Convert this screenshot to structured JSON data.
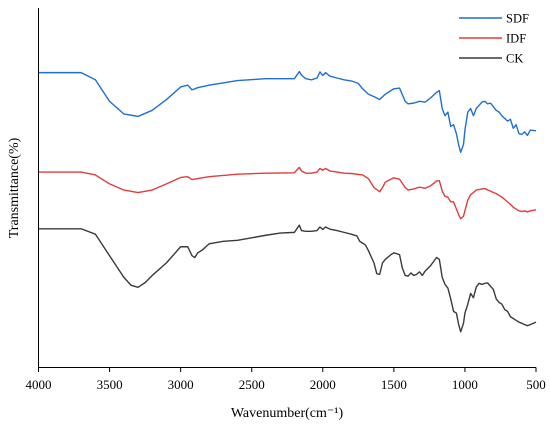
{
  "chart_data": {
    "type": "line",
    "title": "",
    "xlabel": "Wavenumber(cm⁻¹)",
    "ylabel": "Transmittance(%)",
    "xlim": [
      4000,
      500
    ],
    "x_reversed": true,
    "y_ticks_shown": false,
    "grid": false,
    "legend_position": "top-right",
    "x_ticks": [
      4000,
      3500,
      3000,
      2500,
      2000,
      1500,
      1000,
      500
    ],
    "x_tick_labels": [
      "4000",
      "3500",
      "3000",
      "2500",
      "2000",
      "1500",
      "1000",
      "500"
    ],
    "ylim": [
      0,
      100
    ],
    "series": [
      {
        "name": "SDF",
        "color": "#1f6fd1",
        "points": [
          [
            4000,
            82
          ],
          [
            3800,
            82
          ],
          [
            3700,
            82
          ],
          [
            3600,
            80
          ],
          [
            3500,
            74
          ],
          [
            3400,
            70.5
          ],
          [
            3300,
            69.8
          ],
          [
            3200,
            71.5
          ],
          [
            3100,
            74.5
          ],
          [
            3000,
            78
          ],
          [
            2950,
            78.5
          ],
          [
            2920,
            77.2
          ],
          [
            2880,
            77.8
          ],
          [
            2800,
            78.5
          ],
          [
            2600,
            79.8
          ],
          [
            2400,
            80.3
          ],
          [
            2300,
            80.3
          ],
          [
            2200,
            80.3
          ],
          [
            2165,
            82.3
          ],
          [
            2150,
            81.3
          ],
          [
            2120,
            80.3
          ],
          [
            2080,
            80
          ],
          [
            2040,
            80.5
          ],
          [
            2020,
            82.2
          ],
          [
            2000,
            81.2
          ],
          [
            1980,
            82
          ],
          [
            1950,
            81
          ],
          [
            1900,
            80.5
          ],
          [
            1850,
            80
          ],
          [
            1800,
            79.7
          ],
          [
            1750,
            79
          ],
          [
            1720,
            77.5
          ],
          [
            1680,
            76
          ],
          [
            1640,
            75.3
          ],
          [
            1600,
            74.5
          ],
          [
            1560,
            76
          ],
          [
            1500,
            77.5
          ],
          [
            1460,
            77.7
          ],
          [
            1420,
            74
          ],
          [
            1400,
            73.3
          ],
          [
            1360,
            73.5
          ],
          [
            1320,
            74
          ],
          [
            1280,
            73.8
          ],
          [
            1240,
            75
          ],
          [
            1200,
            76.5
          ],
          [
            1180,
            77
          ],
          [
            1160,
            72
          ],
          [
            1140,
            70
          ],
          [
            1120,
            71
          ],
          [
            1100,
            67
          ],
          [
            1080,
            67.5
          ],
          [
            1060,
            65
          ],
          [
            1045,
            62
          ],
          [
            1030,
            59.8
          ],
          [
            1010,
            62
          ],
          [
            1000,
            66
          ],
          [
            980,
            71
          ],
          [
            960,
            72
          ],
          [
            940,
            70
          ],
          [
            920,
            72
          ],
          [
            880,
            73.8
          ],
          [
            860,
            74
          ],
          [
            840,
            73.3
          ],
          [
            820,
            73.5
          ],
          [
            800,
            72.5
          ],
          [
            780,
            71.5
          ],
          [
            760,
            71
          ],
          [
            740,
            70
          ],
          [
            700,
            68.5
          ],
          [
            680,
            69
          ],
          [
            660,
            66.5
          ],
          [
            640,
            67.5
          ],
          [
            620,
            65
          ],
          [
            600,
            64.8
          ],
          [
            580,
            65.5
          ],
          [
            560,
            64.5
          ],
          [
            540,
            66
          ],
          [
            500,
            65.8
          ]
        ]
      },
      {
        "name": "IDF",
        "color": "#e23b3b",
        "points": [
          [
            4000,
            54.3
          ],
          [
            3800,
            54.3
          ],
          [
            3700,
            54.3
          ],
          [
            3600,
            53.5
          ],
          [
            3500,
            51
          ],
          [
            3400,
            49.3
          ],
          [
            3300,
            48.6
          ],
          [
            3200,
            49.3
          ],
          [
            3100,
            51
          ],
          [
            3000,
            52.8
          ],
          [
            2950,
            53
          ],
          [
            2920,
            52.2
          ],
          [
            2880,
            52.5
          ],
          [
            2800,
            53
          ],
          [
            2600,
            53.7
          ],
          [
            2400,
            54
          ],
          [
            2200,
            54.1
          ],
          [
            2165,
            55.6
          ],
          [
            2150,
            54.6
          ],
          [
            2120,
            54
          ],
          [
            2080,
            54
          ],
          [
            2040,
            54.3
          ],
          [
            2020,
            55.3
          ],
          [
            2000,
            54.8
          ],
          [
            1980,
            55.3
          ],
          [
            1950,
            54.6
          ],
          [
            1900,
            54.3
          ],
          [
            1850,
            54
          ],
          [
            1800,
            53.9
          ],
          [
            1720,
            53.5
          ],
          [
            1680,
            52.5
          ],
          [
            1640,
            50
          ],
          [
            1600,
            48.8
          ],
          [
            1580,
            50
          ],
          [
            1560,
            51.5
          ],
          [
            1500,
            52.7
          ],
          [
            1460,
            52.3
          ],
          [
            1420,
            50
          ],
          [
            1400,
            49.3
          ],
          [
            1360,
            49.6
          ],
          [
            1320,
            50.1
          ],
          [
            1280,
            49.8
          ],
          [
            1240,
            50.5
          ],
          [
            1200,
            51.8
          ],
          [
            1180,
            51.9
          ],
          [
            1160,
            49
          ],
          [
            1140,
            47.5
          ],
          [
            1120,
            47.3
          ],
          [
            1100,
            46
          ],
          [
            1080,
            46
          ],
          [
            1060,
            44
          ],
          [
            1045,
            42.5
          ],
          [
            1030,
            41.3
          ],
          [
            1010,
            42
          ],
          [
            1000,
            43.5
          ],
          [
            980,
            46.5
          ],
          [
            960,
            48
          ],
          [
            940,
            48.6
          ],
          [
            920,
            49.3
          ],
          [
            880,
            49.6
          ],
          [
            860,
            49.7
          ],
          [
            840,
            49.3
          ],
          [
            820,
            49
          ],
          [
            800,
            48.6
          ],
          [
            780,
            48.3
          ],
          [
            760,
            47.8
          ],
          [
            740,
            47.3
          ],
          [
            700,
            46
          ],
          [
            680,
            45.3
          ],
          [
            660,
            44.5
          ],
          [
            640,
            44
          ],
          [
            620,
            43.5
          ],
          [
            600,
            43.3
          ],
          [
            580,
            43.5
          ],
          [
            560,
            43.2
          ],
          [
            540,
            43.5
          ],
          [
            500,
            43.8
          ]
        ]
      },
      {
        "name": "CK",
        "color": "#3a3a3a",
        "points": [
          [
            4000,
            38.5
          ],
          [
            3800,
            38.5
          ],
          [
            3700,
            38.5
          ],
          [
            3600,
            37
          ],
          [
            3500,
            31
          ],
          [
            3400,
            25
          ],
          [
            3350,
            22.8
          ],
          [
            3300,
            22.2
          ],
          [
            3250,
            23.5
          ],
          [
            3200,
            25.5
          ],
          [
            3100,
            29
          ],
          [
            3000,
            33.5
          ],
          [
            2950,
            33.5
          ],
          [
            2920,
            31
          ],
          [
            2900,
            30.5
          ],
          [
            2880,
            31.8
          ],
          [
            2850,
            32.5
          ],
          [
            2800,
            34.3
          ],
          [
            2700,
            35
          ],
          [
            2600,
            35.3
          ],
          [
            2500,
            36
          ],
          [
            2400,
            36.7
          ],
          [
            2300,
            37.3
          ],
          [
            2200,
            37.5
          ],
          [
            2165,
            39.5
          ],
          [
            2150,
            38
          ],
          [
            2120,
            37.8
          ],
          [
            2080,
            37.8
          ],
          [
            2040,
            38
          ],
          [
            2020,
            39
          ],
          [
            2000,
            38.3
          ],
          [
            1980,
            39
          ],
          [
            1950,
            38.4
          ],
          [
            1900,
            38
          ],
          [
            1850,
            37.5
          ],
          [
            1800,
            37
          ],
          [
            1760,
            36.5
          ],
          [
            1740,
            35
          ],
          [
            1720,
            34.5
          ],
          [
            1700,
            34
          ],
          [
            1680,
            32.5
          ],
          [
            1640,
            29
          ],
          [
            1620,
            26
          ],
          [
            1600,
            25.8
          ],
          [
            1580,
            29
          ],
          [
            1560,
            30
          ],
          [
            1520,
            31.3
          ],
          [
            1500,
            31.8
          ],
          [
            1460,
            31.3
          ],
          [
            1440,
            27.5
          ],
          [
            1420,
            25.5
          ],
          [
            1400,
            25.3
          ],
          [
            1380,
            26.2
          ],
          [
            1360,
            25.5
          ],
          [
            1340,
            25.8
          ],
          [
            1320,
            26.5
          ],
          [
            1300,
            25.5
          ],
          [
            1280,
            26.7
          ],
          [
            1260,
            27.5
          ],
          [
            1240,
            28.3
          ],
          [
            1200,
            30.5
          ],
          [
            1180,
            30
          ],
          [
            1160,
            25
          ],
          [
            1140,
            23
          ],
          [
            1120,
            22
          ],
          [
            1100,
            19
          ],
          [
            1080,
            15.5
          ],
          [
            1060,
            15
          ],
          [
            1045,
            12
          ],
          [
            1030,
            9.8
          ],
          [
            1020,
            11
          ],
          [
            1010,
            12.2
          ],
          [
            1000,
            15
          ],
          [
            980,
            17.5
          ],
          [
            960,
            20.5
          ],
          [
            940,
            19.3
          ],
          [
            920,
            22.3
          ],
          [
            900,
            23.3
          ],
          [
            880,
            23
          ],
          [
            860,
            23.3
          ],
          [
            840,
            23.4
          ],
          [
            820,
            22.5
          ],
          [
            800,
            21.6
          ],
          [
            780,
            19
          ],
          [
            760,
            18
          ],
          [
            740,
            17.5
          ],
          [
            720,
            16
          ],
          [
            700,
            15.5
          ],
          [
            680,
            14
          ],
          [
            660,
            13.5
          ],
          [
            640,
            13
          ],
          [
            620,
            12.5
          ],
          [
            600,
            12.2
          ],
          [
            580,
            11.8
          ],
          [
            560,
            11.5
          ],
          [
            540,
            11.8
          ],
          [
            500,
            12.5
          ]
        ]
      }
    ]
  }
}
